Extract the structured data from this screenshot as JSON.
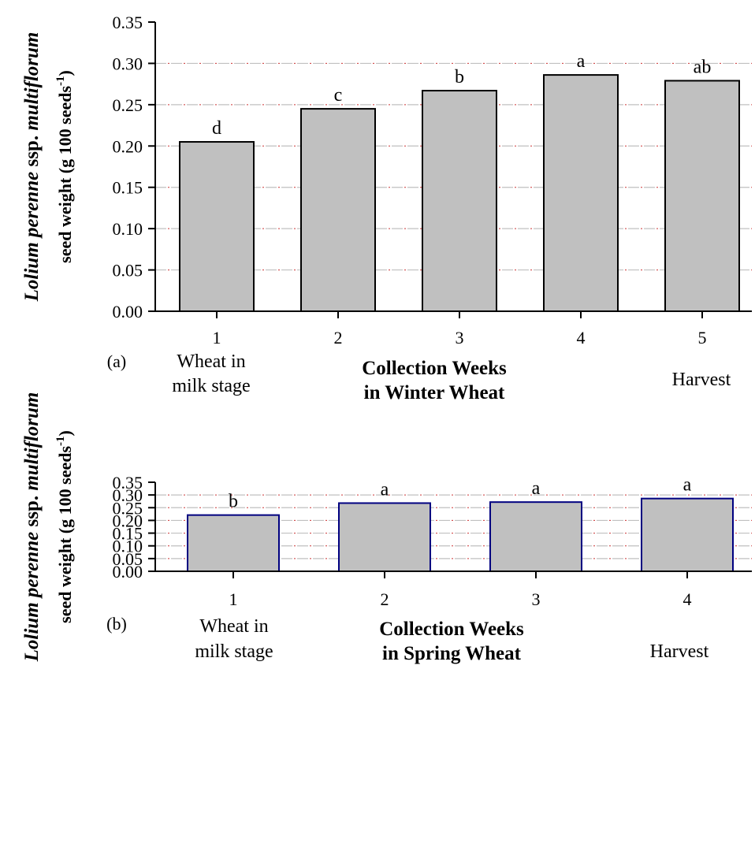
{
  "colors": {
    "bar_fill": "#c0c0c0",
    "gridline_dash": "#c0c0c0",
    "gridline_dot": "#cc3333",
    "axis": "#000000"
  },
  "ylabel": {
    "species_italic": "Lolium perenne",
    "ssp": " ssp. ",
    "variety_italic": "multiflorum",
    "line2_prefix": "seed weight (g 100 seeds",
    "line2_sup": "-1",
    "line2_suffix": ")"
  },
  "chart_data": [
    {
      "panel": "(a)",
      "type": "bar",
      "bar_edge": "#000000",
      "categories": [
        "1",
        "2",
        "3",
        "4",
        "5"
      ],
      "values": [
        0.205,
        0.245,
        0.267,
        0.286,
        0.279
      ],
      "letters": [
        "d",
        "c",
        "b",
        "a",
        "ab"
      ],
      "ylim": [
        0,
        0.35
      ],
      "yticks": [
        "0.00",
        "0.05",
        "0.10",
        "0.15",
        "0.20",
        "0.25",
        "0.30",
        "0.35"
      ],
      "xlabel": [
        "Collection Weeks",
        "in Winter Wheat"
      ],
      "first_note": [
        "Wheat in",
        "milk stage"
      ],
      "last_note": [
        "Harvest"
      ],
      "grid": true
    },
    {
      "panel": "(b)",
      "type": "bar",
      "bar_edge": "#000080",
      "categories": [
        "1",
        "2",
        "3",
        "4"
      ],
      "values": [
        0.221,
        0.268,
        0.272,
        0.286
      ],
      "letters": [
        "b",
        "a",
        "a",
        "a"
      ],
      "ylim": [
        0,
        0.35
      ],
      "yticks": [
        "0.00",
        "0.05",
        "0.10",
        "0.15",
        "0.20",
        "0.25",
        "0.30",
        "0.35"
      ],
      "xlabel": [
        "Collection Weeks",
        "in Spring Wheat"
      ],
      "first_note": [
        "Wheat in",
        "milk stage"
      ],
      "last_note": [
        "Harvest"
      ],
      "grid": true
    }
  ]
}
